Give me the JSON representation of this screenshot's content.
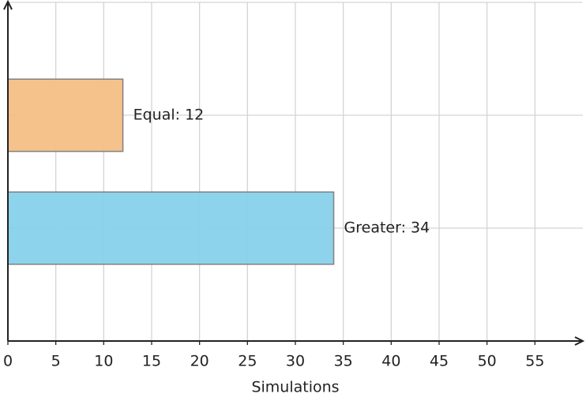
{
  "chart_data": {
    "type": "hbar",
    "xlabel": "Simulations",
    "categories": [
      null,
      null
    ],
    "values": [
      34,
      12
    ],
    "value_labels": [
      "Greater: 34",
      "Equal: 12"
    ],
    "colors": [
      "#87d1ea",
      "#f4bf86"
    ],
    "xlim": [
      0,
      60
    ],
    "xticks": [
      0,
      5,
      10,
      15,
      20,
      25,
      30,
      35,
      40,
      45,
      50,
      55
    ],
    "grid": true
  }
}
